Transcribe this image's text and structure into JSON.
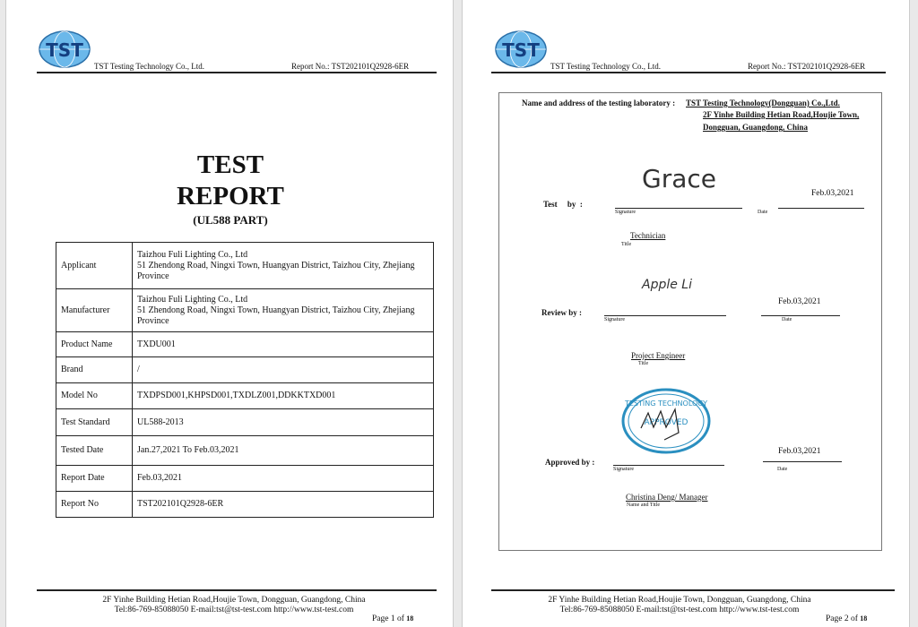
{
  "header": {
    "company": "TST Testing Technology Co., Ltd.",
    "report_no": "Report No.: TST202101Q2928-6ER",
    "logo_text": "TST"
  },
  "page1": {
    "title_line1": "TEST",
    "title_line2": "REPORT",
    "subtitle": "(UL588 PART)",
    "rows": [
      {
        "label": "Applicant",
        "value": "Taizhou Fuli Lighting Co., Ltd\n51 Zhendong Road, Ningxi Town, Huangyan District, Taizhou City, Zhejiang Province"
      },
      {
        "label": "Manufacturer",
        "value": "Taizhou Fuli Lighting Co., Ltd\n51 Zhendong Road, Ningxi Town, Huangyan District, Taizhou City, Zhejiang Province"
      },
      {
        "label": "Product Name",
        "value": "TXDU001"
      },
      {
        "label": "Brand",
        "value": "/"
      },
      {
        "label": "Model No",
        "value": "TXDPSD001,KHPSD001,TXDLZ001,DDKKTXD001"
      },
      {
        "label": "Test Standard",
        "value": "UL588-2013"
      },
      {
        "label": "Tested Date",
        "value": "Jan.27,2021 To Feb.03,2021"
      },
      {
        "label": "Report Date",
        "value": "Feb.03,2021"
      },
      {
        "label": "Report No",
        "value": "TST202101Q2928-6ER"
      }
    ],
    "page_label": "Page 1 of",
    "page_total": "18"
  },
  "page2": {
    "lab_label": "Name and address of the testing laboratory :",
    "lab_name": "TST Testing Technology(Dongguan) Co.,Ltd.",
    "lab_addr1": "2F Yinhe Building Hetian Road,Houjie Town,",
    "lab_addr2": "Dongguan, Guangdong, China",
    "test_label": "Test     by  :",
    "test_sig": "Grace",
    "test_date": "Feb.03,2021",
    "test_title": "Technician",
    "review_label": "Review by  :",
    "review_sig": "Apple Li",
    "review_date": "Feb.03,2021",
    "review_title": "Project Engineer",
    "approved_label": "Approved by :",
    "approved_sig": "Andy",
    "approved_date": "Feb.03,2021",
    "approved_title": "Christina Deng/ Manager",
    "stamp_text": "TST TESTING TECHNOLOGY CO., LTD. APPROVED",
    "signature_caption": "Signature",
    "date_caption": "Date",
    "title_caption": "Title",
    "name_title_caption": "Name and Title",
    "page_label": "Page 2 of",
    "page_total": "18"
  },
  "footer": {
    "line1": "2F Yinhe Building Hetian Road,Houjie Town, Dongguan, Guangdong, China",
    "line2": "Tel:86-769-85088050 E-mail:tst@tst-test.com http://www.tst-test.com"
  },
  "colors": {
    "logo_blue": "#2a8fd0",
    "stamp_blue": "#2a8fc0"
  }
}
